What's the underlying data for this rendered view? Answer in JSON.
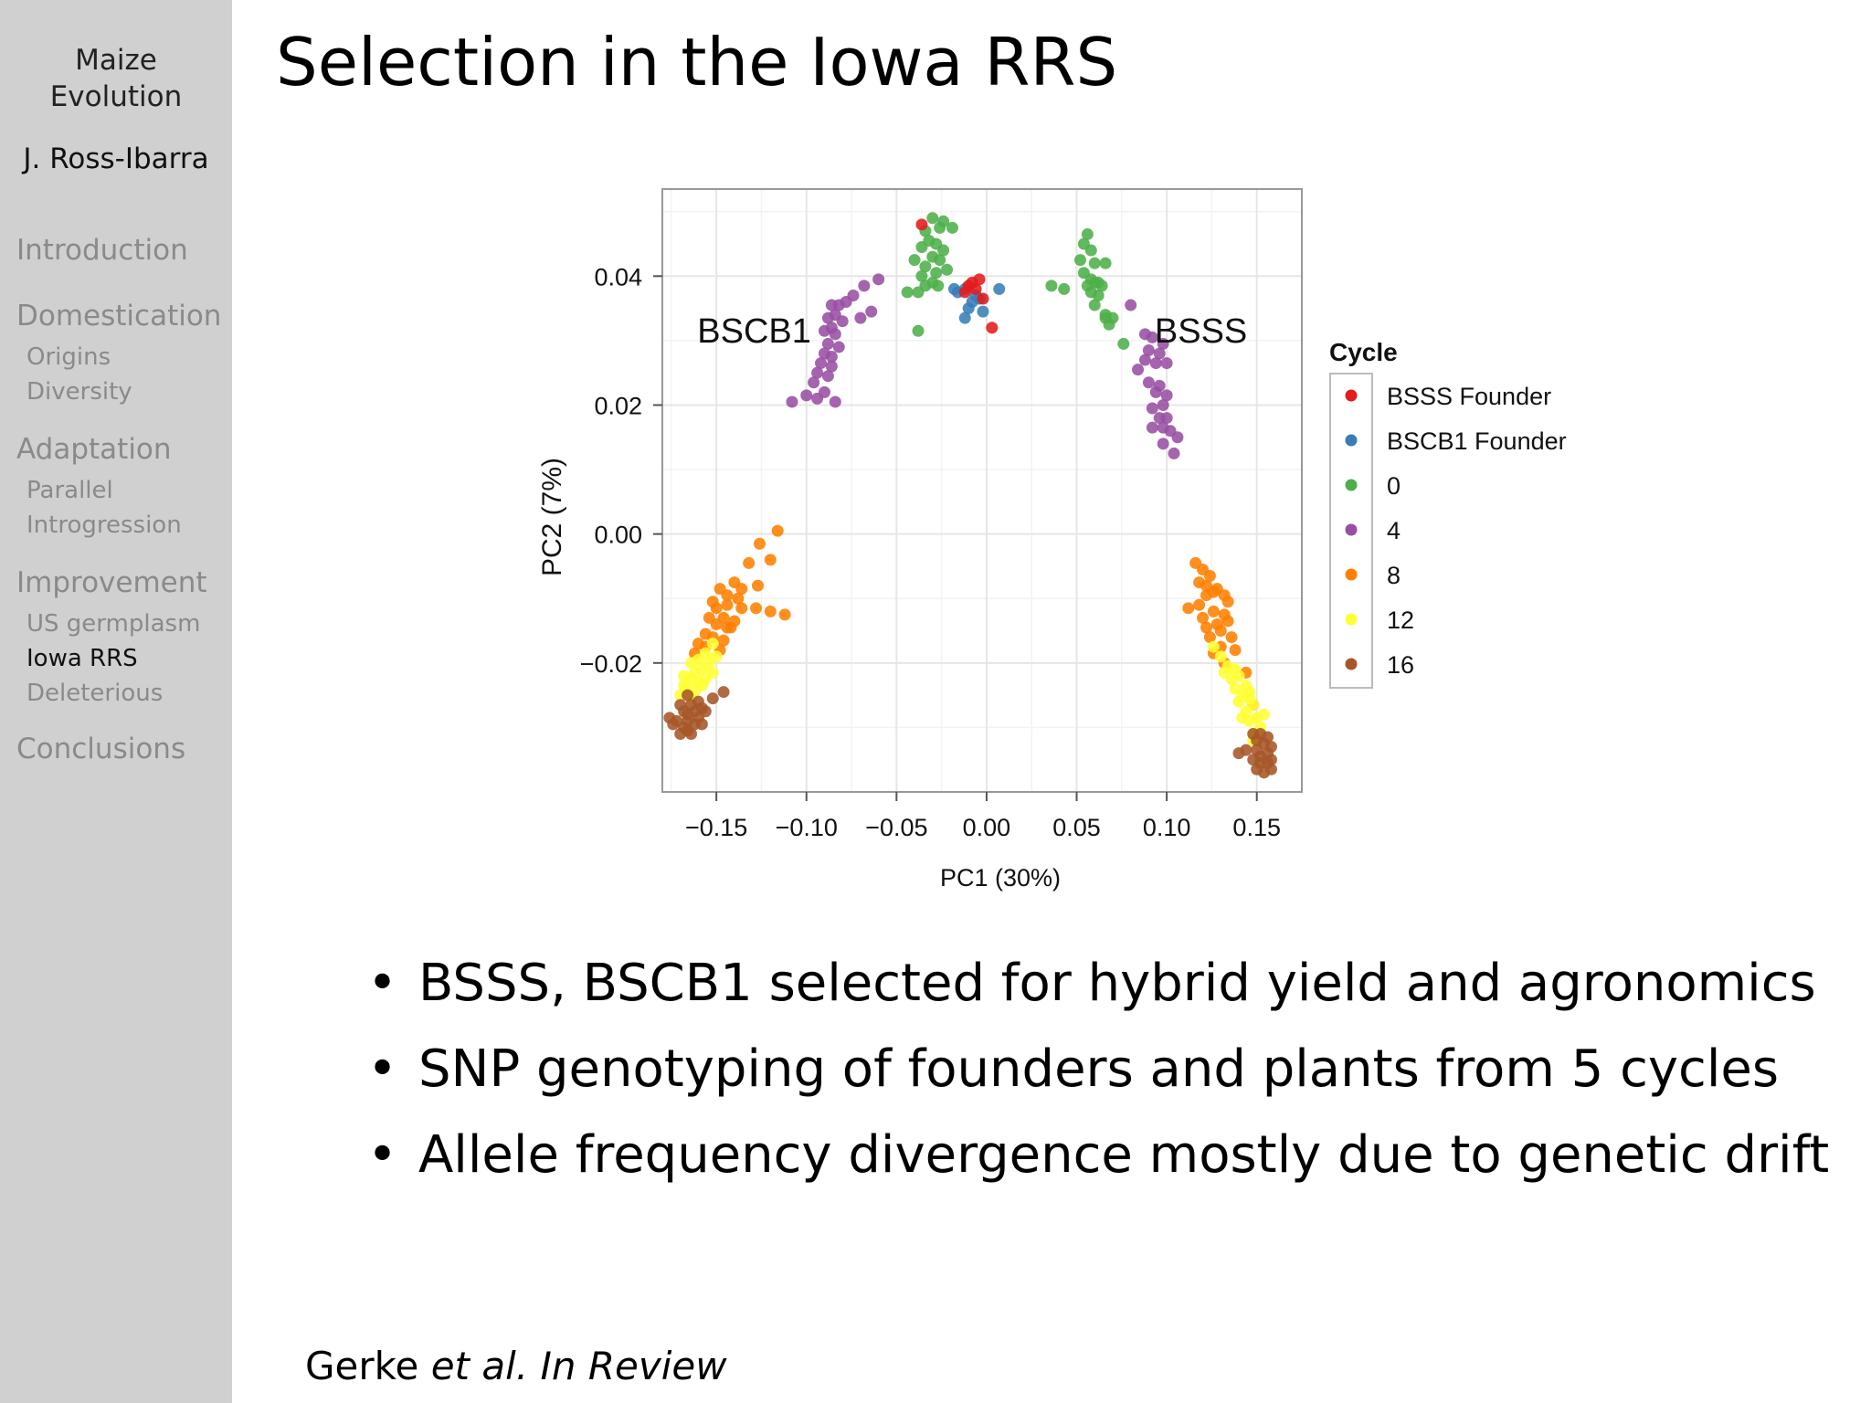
{
  "sidebar": {
    "deck_title_line1": "Maize",
    "deck_title_line2": "Evolution",
    "author": "J. Ross-Ibarra",
    "nav": [
      {
        "label": "Introduction",
        "subitems": []
      },
      {
        "label": "Domestication",
        "subitems": [
          {
            "label": "Origins",
            "active": false
          },
          {
            "label": "Diversity",
            "active": false
          }
        ]
      },
      {
        "label": "Adaptation",
        "subitems": [
          {
            "label": "Parallel",
            "active": false
          },
          {
            "label": "Introgression",
            "active": false
          }
        ]
      },
      {
        "label": "Improvement",
        "subitems": [
          {
            "label": "US germplasm",
            "active": false
          },
          {
            "label": "Iowa RRS",
            "active": true
          },
          {
            "label": "Deleterious",
            "active": false
          }
        ]
      },
      {
        "label": "Conclusions",
        "subitems": []
      }
    ]
  },
  "slide": {
    "title": "Selection in the Iowa RRS",
    "bullets": [
      "BSSS, BSCB1 selected for hybrid yield and agronomics",
      "SNP genotyping of founders and plants from 5 cycles",
      "Allele frequency divergence mostly due to genetic drift"
    ],
    "citation": {
      "author": "Gerke",
      "etal": "et al.",
      "venue": "In Review"
    }
  },
  "colors": {
    "BSSS Founder": "#e41a1c",
    "BSCB1 Founder": "#377eb8",
    "0": "#4daf4a",
    "4": "#984ea3",
    "8": "#ff7f00",
    "12": "#ffff33",
    "16": "#a65628"
  },
  "chart_data": {
    "type": "scatter",
    "xlabel": "PC1 (30%)",
    "ylabel": "PC2 (7%)",
    "xlim": [
      -0.18,
      0.175
    ],
    "ylim": [
      -0.04,
      0.0535
    ],
    "xticks": [
      -0.15,
      -0.1,
      -0.05,
      0.0,
      0.05,
      0.1,
      0.15
    ],
    "xtick_labels": [
      "−0.15",
      "−0.10",
      "−0.05",
      "0.00",
      "0.05",
      "0.10",
      "0.15"
    ],
    "yticks": [
      -0.02,
      0.0,
      0.02,
      0.04
    ],
    "ytick_labels": [
      "−0.02",
      "0.00",
      "0.02",
      "0.04"
    ],
    "grid": true,
    "legend_title": "Cycle",
    "legend_placement": "right",
    "annotations": [
      {
        "text": "BSCB1",
        "x": -0.129,
        "y": 0.0297
      },
      {
        "text": "BSSS",
        "x": 0.119,
        "y": 0.0297
      }
    ],
    "series": [
      {
        "name": "BSSS Founder",
        "points": [
          [
            -0.036,
            0.048
          ],
          [
            -0.008,
            0.039
          ],
          [
            -0.006,
            0.038
          ],
          [
            -0.01,
            0.0385
          ],
          [
            -0.002,
            0.0365
          ],
          [
            0.003,
            0.032
          ],
          [
            -0.004,
            0.0395
          ],
          [
            -0.012,
            0.0375
          ]
        ]
      },
      {
        "name": "BSCB1 Founder",
        "points": [
          [
            -0.018,
            0.038
          ],
          [
            -0.016,
            0.0375
          ],
          [
            -0.012,
            0.038
          ],
          [
            -0.008,
            0.036
          ],
          [
            -0.01,
            0.035
          ],
          [
            -0.006,
            0.037
          ],
          [
            -0.004,
            0.0365
          ],
          [
            0.007,
            0.038
          ],
          [
            -0.012,
            0.0335
          ],
          [
            -0.002,
            0.0345
          ]
        ]
      },
      {
        "name": "0",
        "points": [
          [
            -0.03,
            0.049
          ],
          [
            -0.024,
            0.0485
          ],
          [
            -0.034,
            0.047
          ],
          [
            -0.026,
            0.0475
          ],
          [
            -0.019,
            0.0475
          ],
          [
            -0.028,
            0.045
          ],
          [
            -0.032,
            0.0455
          ],
          [
            -0.024,
            0.044
          ],
          [
            -0.036,
            0.0445
          ],
          [
            -0.03,
            0.043
          ],
          [
            -0.026,
            0.0425
          ],
          [
            -0.034,
            0.0415
          ],
          [
            -0.028,
            0.0405
          ],
          [
            -0.022,
            0.041
          ],
          [
            -0.036,
            0.04
          ],
          [
            -0.03,
            0.039
          ],
          [
            -0.034,
            0.0385
          ],
          [
            -0.04,
            0.0425
          ],
          [
            -0.038,
            0.0375
          ],
          [
            -0.027,
            0.0385
          ],
          [
            -0.044,
            0.0375
          ],
          [
            -0.038,
            0.0315
          ],
          [
            0.036,
            0.0385
          ],
          [
            0.043,
            0.038
          ],
          [
            0.056,
            0.0465
          ],
          [
            0.054,
            0.045
          ],
          [
            0.058,
            0.044
          ],
          [
            0.052,
            0.0425
          ],
          [
            0.06,
            0.042
          ],
          [
            0.066,
            0.042
          ],
          [
            0.054,
            0.0405
          ],
          [
            0.058,
            0.0395
          ],
          [
            0.062,
            0.039
          ],
          [
            0.056,
            0.0385
          ],
          [
            0.064,
            0.0385
          ],
          [
            0.058,
            0.0375
          ],
          [
            0.062,
            0.037
          ],
          [
            0.06,
            0.0355
          ],
          [
            0.066,
            0.0335
          ],
          [
            0.07,
            0.0335
          ],
          [
            0.068,
            0.0325
          ],
          [
            0.076,
            0.0295
          ],
          [
            0.066,
            0.034
          ],
          [
            0.06,
            0.039
          ]
        ]
      },
      {
        "name": "4",
        "points": [
          [
            -0.06,
            0.0395
          ],
          [
            -0.068,
            0.0385
          ],
          [
            -0.074,
            0.037
          ],
          [
            -0.078,
            0.036
          ],
          [
            -0.082,
            0.0355
          ],
          [
            -0.086,
            0.0355
          ],
          [
            -0.084,
            0.034
          ],
          [
            -0.088,
            0.0335
          ],
          [
            -0.064,
            0.0345
          ],
          [
            -0.08,
            0.033
          ],
          [
            -0.086,
            0.032
          ],
          [
            -0.09,
            0.0315
          ],
          [
            -0.084,
            0.031
          ],
          [
            -0.088,
            0.0295
          ],
          [
            -0.082,
            0.029
          ],
          [
            -0.09,
            0.028
          ],
          [
            -0.086,
            0.0275
          ],
          [
            -0.092,
            0.0265
          ],
          [
            -0.086,
            0.026
          ],
          [
            -0.094,
            0.025
          ],
          [
            -0.088,
            0.0245
          ],
          [
            -0.096,
            0.0235
          ],
          [
            -0.09,
            0.022
          ],
          [
            -0.1,
            0.0215
          ],
          [
            -0.094,
            0.021
          ],
          [
            -0.108,
            0.0205
          ],
          [
            -0.084,
            0.0205
          ],
          [
            -0.07,
            0.0335
          ],
          [
            0.08,
            0.0355
          ],
          [
            0.088,
            0.031
          ],
          [
            0.092,
            0.0305
          ],
          [
            0.098,
            0.0295
          ],
          [
            0.09,
            0.0285
          ],
          [
            0.096,
            0.028
          ],
          [
            0.088,
            0.027
          ],
          [
            0.094,
            0.0265
          ],
          [
            0.1,
            0.0265
          ],
          [
            0.084,
            0.0255
          ],
          [
            0.09,
            0.0235
          ],
          [
            0.096,
            0.023
          ],
          [
            0.094,
            0.022
          ],
          [
            0.1,
            0.0215
          ],
          [
            0.098,
            0.02
          ],
          [
            0.092,
            0.0195
          ],
          [
            0.096,
            0.018
          ],
          [
            0.1,
            0.018
          ],
          [
            0.092,
            0.0165
          ],
          [
            0.098,
            0.0165
          ],
          [
            0.102,
            0.016
          ],
          [
            0.106,
            0.015
          ],
          [
            0.098,
            0.014
          ],
          [
            0.104,
            0.0125
          ]
        ]
      },
      {
        "name": "8",
        "points": [
          [
            -0.116,
            0.0005
          ],
          [
            -0.126,
            -0.0015
          ],
          [
            -0.132,
            -0.0045
          ],
          [
            -0.12,
            -0.004
          ],
          [
            -0.148,
            -0.0085
          ],
          [
            -0.14,
            -0.0075
          ],
          [
            -0.136,
            -0.0085
          ],
          [
            -0.127,
            -0.008
          ],
          [
            -0.144,
            -0.0095
          ],
          [
            -0.138,
            -0.01
          ],
          [
            -0.152,
            -0.0105
          ],
          [
            -0.15,
            -0.0115
          ],
          [
            -0.144,
            -0.011
          ],
          [
            -0.136,
            -0.0115
          ],
          [
            -0.128,
            -0.0115
          ],
          [
            -0.112,
            -0.0125
          ],
          [
            -0.12,
            -0.012
          ],
          [
            -0.154,
            -0.013
          ],
          [
            -0.146,
            -0.013
          ],
          [
            -0.14,
            -0.0135
          ],
          [
            -0.15,
            -0.014
          ],
          [
            -0.144,
            -0.0145
          ],
          [
            -0.156,
            -0.0155
          ],
          [
            -0.152,
            -0.016
          ],
          [
            -0.146,
            -0.0165
          ],
          [
            -0.16,
            -0.017
          ],
          [
            -0.156,
            -0.0175
          ],
          [
            -0.148,
            -0.018
          ],
          [
            -0.142,
            -0.0145
          ],
          [
            -0.162,
            -0.0185
          ],
          [
            0.116,
            -0.0045
          ],
          [
            0.12,
            -0.0055
          ],
          [
            0.124,
            -0.0065
          ],
          [
            0.118,
            -0.0075
          ],
          [
            0.122,
            -0.008
          ],
          [
            0.128,
            -0.0085
          ],
          [
            0.132,
            -0.0095
          ],
          [
            0.126,
            -0.009
          ],
          [
            0.134,
            -0.0105
          ],
          [
            0.122,
            -0.0095
          ],
          [
            0.118,
            -0.011
          ],
          [
            0.112,
            -0.0115
          ],
          [
            0.126,
            -0.012
          ],
          [
            0.132,
            -0.0125
          ],
          [
            0.12,
            -0.013
          ],
          [
            0.128,
            -0.014
          ],
          [
            0.134,
            -0.0135
          ],
          [
            0.122,
            -0.0145
          ],
          [
            0.13,
            -0.015
          ],
          [
            0.124,
            -0.016
          ],
          [
            0.136,
            -0.016
          ],
          [
            0.13,
            -0.0175
          ],
          [
            0.126,
            -0.0185
          ],
          [
            0.138,
            -0.018
          ],
          [
            0.144,
            -0.0215
          ],
          [
            0.132,
            -0.02
          ],
          [
            0.148,
            -0.0265
          ]
        ]
      },
      {
        "name": "12",
        "points": [
          [
            -0.152,
            -0.017
          ],
          [
            -0.156,
            -0.0185
          ],
          [
            -0.16,
            -0.0195
          ],
          [
            -0.164,
            -0.02
          ],
          [
            -0.154,
            -0.02
          ],
          [
            -0.162,
            -0.0215
          ],
          [
            -0.158,
            -0.021
          ],
          [
            -0.168,
            -0.022
          ],
          [
            -0.152,
            -0.0215
          ],
          [
            -0.164,
            -0.0225
          ],
          [
            -0.16,
            -0.023
          ],
          [
            -0.156,
            -0.0225
          ],
          [
            -0.168,
            -0.0235
          ],
          [
            -0.166,
            -0.024
          ],
          [
            -0.158,
            -0.0235
          ],
          [
            -0.162,
            -0.0245
          ],
          [
            -0.17,
            -0.025
          ],
          [
            -0.164,
            -0.0255
          ],
          [
            -0.15,
            -0.019
          ],
          [
            0.126,
            -0.0175
          ],
          [
            0.13,
            -0.019
          ],
          [
            0.134,
            -0.0205
          ],
          [
            0.138,
            -0.021
          ],
          [
            0.132,
            -0.0215
          ],
          [
            0.136,
            -0.0225
          ],
          [
            0.14,
            -0.022
          ],
          [
            0.144,
            -0.0235
          ],
          [
            0.138,
            -0.024
          ],
          [
            0.142,
            -0.025
          ],
          [
            0.146,
            -0.0245
          ],
          [
            0.14,
            -0.026
          ],
          [
            0.148,
            -0.0265
          ],
          [
            0.144,
            -0.0275
          ],
          [
            0.15,
            -0.0285
          ],
          [
            0.146,
            -0.029
          ],
          [
            0.152,
            -0.03
          ],
          [
            0.148,
            -0.031
          ],
          [
            0.15,
            -0.0315
          ],
          [
            0.142,
            -0.0285
          ],
          [
            0.154,
            -0.028
          ],
          [
            0.146,
            -0.0255
          ],
          [
            0.148,
            -0.032
          ]
        ]
      },
      {
        "name": "16",
        "points": [
          [
            -0.146,
            -0.0245
          ],
          [
            -0.152,
            -0.0255
          ],
          [
            -0.166,
            -0.025
          ],
          [
            -0.16,
            -0.026
          ],
          [
            -0.17,
            -0.0265
          ],
          [
            -0.164,
            -0.0265
          ],
          [
            -0.158,
            -0.027
          ],
          [
            -0.168,
            -0.0275
          ],
          [
            -0.162,
            -0.0275
          ],
          [
            -0.156,
            -0.0275
          ],
          [
            -0.166,
            -0.028
          ],
          [
            -0.16,
            -0.0285
          ],
          [
            -0.176,
            -0.0285
          ],
          [
            -0.172,
            -0.029
          ],
          [
            -0.166,
            -0.029
          ],
          [
            -0.162,
            -0.0295
          ],
          [
            -0.168,
            -0.03
          ],
          [
            -0.158,
            -0.0295
          ],
          [
            -0.17,
            -0.031
          ],
          [
            -0.164,
            -0.031
          ],
          [
            -0.174,
            -0.0295
          ],
          [
            -0.166,
            -0.0305
          ],
          [
            0.148,
            -0.031
          ],
          [
            0.152,
            -0.031
          ],
          [
            0.156,
            -0.0315
          ],
          [
            0.15,
            -0.032
          ],
          [
            0.154,
            -0.0325
          ],
          [
            0.158,
            -0.033
          ],
          [
            0.15,
            -0.0335
          ],
          [
            0.156,
            -0.034
          ],
          [
            0.152,
            -0.0345
          ],
          [
            0.158,
            -0.035
          ],
          [
            0.144,
            -0.0335
          ],
          [
            0.14,
            -0.034
          ],
          [
            0.152,
            -0.0355
          ],
          [
            0.156,
            -0.0355
          ],
          [
            0.148,
            -0.035
          ],
          [
            0.154,
            -0.037
          ],
          [
            0.158,
            -0.0365
          ],
          [
            0.15,
            -0.0365
          ]
        ]
      }
    ]
  }
}
